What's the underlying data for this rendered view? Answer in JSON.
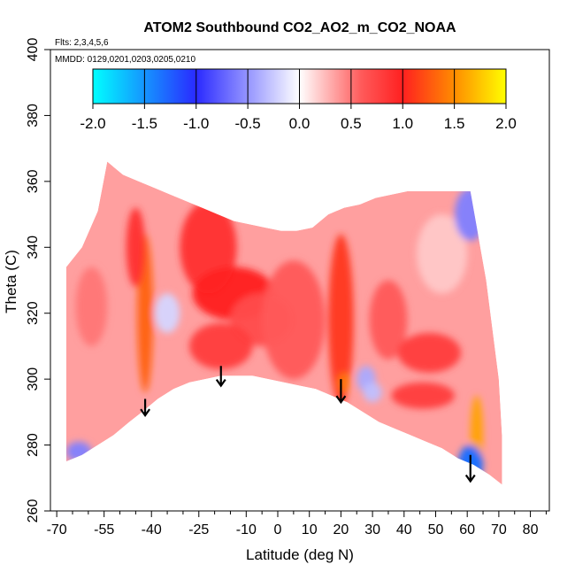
{
  "chart_data": {
    "type": "heatmap",
    "title": "ATOM2 Southbound CO2_AO2_m_CO2_NOAA",
    "flights_note": "Flts: 2,3,4,5,6",
    "dates_note": "MMDD: 0129,0201,0203,0205,0210",
    "xlabel": "Latitude (deg N)",
    "ylabel": "Theta (C)",
    "xlim": [
      -72,
      86
    ],
    "ylim": [
      260,
      400
    ],
    "x_ticks": [
      -70,
      -55,
      -40,
      -25,
      -10,
      0,
      10,
      20,
      30,
      40,
      50,
      60,
      70,
      80
    ],
    "x_tick_labels": [
      "-70",
      "-55",
      "-40",
      "-25",
      "-10",
      "0",
      "10",
      "20",
      "30",
      "40",
      "50",
      "60",
      "70",
      "80"
    ],
    "x_minor_ticks": [
      -65,
      -60,
      -50,
      -45,
      -35,
      -30,
      -20,
      -15,
      -5,
      5,
      15,
      25,
      35,
      45,
      55,
      65,
      75,
      85
    ],
    "y_ticks": [
      260,
      280,
      300,
      320,
      340,
      360,
      380,
      400
    ],
    "y_tick_labels": [
      "260",
      "280",
      "300",
      "320",
      "340",
      "360",
      "380",
      "400"
    ],
    "colorbar": {
      "min": -2.0,
      "max": 2.0,
      "ticks": [
        -2.0,
        -1.5,
        -1.0,
        -0.5,
        0.0,
        0.5,
        1.0,
        1.5,
        2.0
      ],
      "tick_labels": [
        "-2.0",
        "-1.5",
        "-1.0",
        "-0.5",
        "0.0",
        "0.5",
        "1.0",
        "1.5",
        "2.0"
      ],
      "stops": [
        {
          "value": -2.0,
          "color": "#00ffff"
        },
        {
          "value": -1.0,
          "color": "#2a2aff"
        },
        {
          "value": -0.6,
          "color": "#8080ff"
        },
        {
          "value": 0.0,
          "color": "#ffffff"
        },
        {
          "value": 0.6,
          "color": "#ff5a5a"
        },
        {
          "value": 1.0,
          "color": "#ff2020"
        },
        {
          "value": 1.5,
          "color": "#ff8c00"
        },
        {
          "value": 2.0,
          "color": "#ffff00"
        }
      ]
    },
    "domain_lower_boundary": [
      [
        -67,
        275
      ],
      [
        -62,
        277
      ],
      [
        -57,
        280
      ],
      [
        -52,
        283
      ],
      [
        -47,
        287
      ],
      [
        -43,
        290
      ],
      [
        -38,
        294
      ],
      [
        -33,
        297
      ],
      [
        -28,
        299
      ],
      [
        -23,
        300
      ],
      [
        -18,
        301
      ],
      [
        -13,
        301
      ],
      [
        -8,
        301
      ],
      [
        -3,
        300
      ],
      [
        2,
        299
      ],
      [
        7,
        298
      ],
      [
        12,
        297
      ],
      [
        17,
        295
      ],
      [
        22,
        293
      ],
      [
        27,
        290
      ],
      [
        32,
        287
      ],
      [
        37,
        285
      ],
      [
        42,
        283
      ],
      [
        47,
        281
      ],
      [
        52,
        279
      ],
      [
        57,
        276
      ],
      [
        62,
        274
      ],
      [
        67,
        271
      ],
      [
        71,
        268
      ]
    ],
    "domain_upper_boundary": [
      [
        -67,
        334
      ],
      [
        -62,
        340
      ],
      [
        -57,
        351
      ],
      [
        -54,
        366
      ],
      [
        -49,
        362
      ],
      [
        -44,
        360
      ],
      [
        -39,
        358
      ],
      [
        -34,
        356
      ],
      [
        -29,
        354
      ],
      [
        -24,
        352
      ],
      [
        -19,
        350
      ],
      [
        -14,
        348
      ],
      [
        -9,
        347
      ],
      [
        -4,
        346
      ],
      [
        1,
        345
      ],
      [
        6,
        345
      ],
      [
        11,
        346
      ],
      [
        16,
        350
      ],
      [
        21,
        352
      ],
      [
        26,
        353
      ],
      [
        31,
        355
      ],
      [
        36,
        356
      ],
      [
        41,
        357
      ],
      [
        46,
        357
      ],
      [
        51,
        357
      ],
      [
        56,
        357
      ],
      [
        61,
        357
      ],
      [
        66,
        330
      ],
      [
        70,
        300
      ],
      [
        71,
        283
      ]
    ],
    "anomalies": [
      {
        "lat": -42,
        "theta": 320,
        "value": 1.3,
        "rx": 2.5,
        "ry": 24
      },
      {
        "lat": -45,
        "theta": 340,
        "value": 0.9,
        "rx": 3,
        "ry": 12
      },
      {
        "lat": -59,
        "theta": 322,
        "value": 0.5,
        "rx": 5,
        "ry": 12
      },
      {
        "lat": -22,
        "theta": 340,
        "value": 0.9,
        "rx": 9,
        "ry": 14
      },
      {
        "lat": -14,
        "theta": 326,
        "value": 1.0,
        "rx": 13,
        "ry": 8
      },
      {
        "lat": -5,
        "theta": 318,
        "value": 0.7,
        "rx": 10,
        "ry": 8
      },
      {
        "lat": -18,
        "theta": 310,
        "value": 0.8,
        "rx": 10,
        "ry": 7
      },
      {
        "lat": 5,
        "theta": 318,
        "value": 0.6,
        "rx": 10,
        "ry": 18
      },
      {
        "lat": 20,
        "theta": 318,
        "value": 1.1,
        "rx": 4,
        "ry": 26
      },
      {
        "lat": 21,
        "theta": 299,
        "value": 1.4,
        "rx": 2,
        "ry": 3
      },
      {
        "lat": 35,
        "theta": 318,
        "value": 0.6,
        "rx": 6,
        "ry": 12
      },
      {
        "lat": 48,
        "theta": 308,
        "value": 0.8,
        "rx": 10,
        "ry": 6
      },
      {
        "lat": 46,
        "theta": 295,
        "value": 0.8,
        "rx": 10,
        "ry": 4
      },
      {
        "lat": 52,
        "theta": 338,
        "value": 0.2,
        "rx": 8,
        "ry": 12
      },
      {
        "lat": 63,
        "theta": 283,
        "value": 1.6,
        "rx": 2,
        "ry": 12
      },
      {
        "lat": 61,
        "theta": 274,
        "value": -1.8,
        "rx": 3,
        "ry": 4
      },
      {
        "lat": 61,
        "theta": 274,
        "value": -1.3,
        "rx": 4,
        "ry": 6
      },
      {
        "lat": 61,
        "theta": 350,
        "value": -0.6,
        "rx": 5,
        "ry": 8
      },
      {
        "lat": -63,
        "theta": 278,
        "value": -0.6,
        "rx": 4,
        "ry": 3
      },
      {
        "lat": -35,
        "theta": 320,
        "value": -0.2,
        "rx": 4,
        "ry": 6
      },
      {
        "lat": 28,
        "theta": 300,
        "value": -0.4,
        "rx": 3,
        "ry": 4
      },
      {
        "lat": 30,
        "theta": 296,
        "value": -0.3,
        "rx": 3,
        "ry": 3
      }
    ],
    "arrows": [
      {
        "lat": -42,
        "theta_top": 294,
        "theta_tip": 289
      },
      {
        "lat": -18,
        "theta_top": 304,
        "theta_tip": 298
      },
      {
        "lat": 20,
        "theta_top": 300,
        "theta_tip": 293
      },
      {
        "lat": 61,
        "theta_top": 277,
        "theta_tip": 269
      }
    ]
  }
}
